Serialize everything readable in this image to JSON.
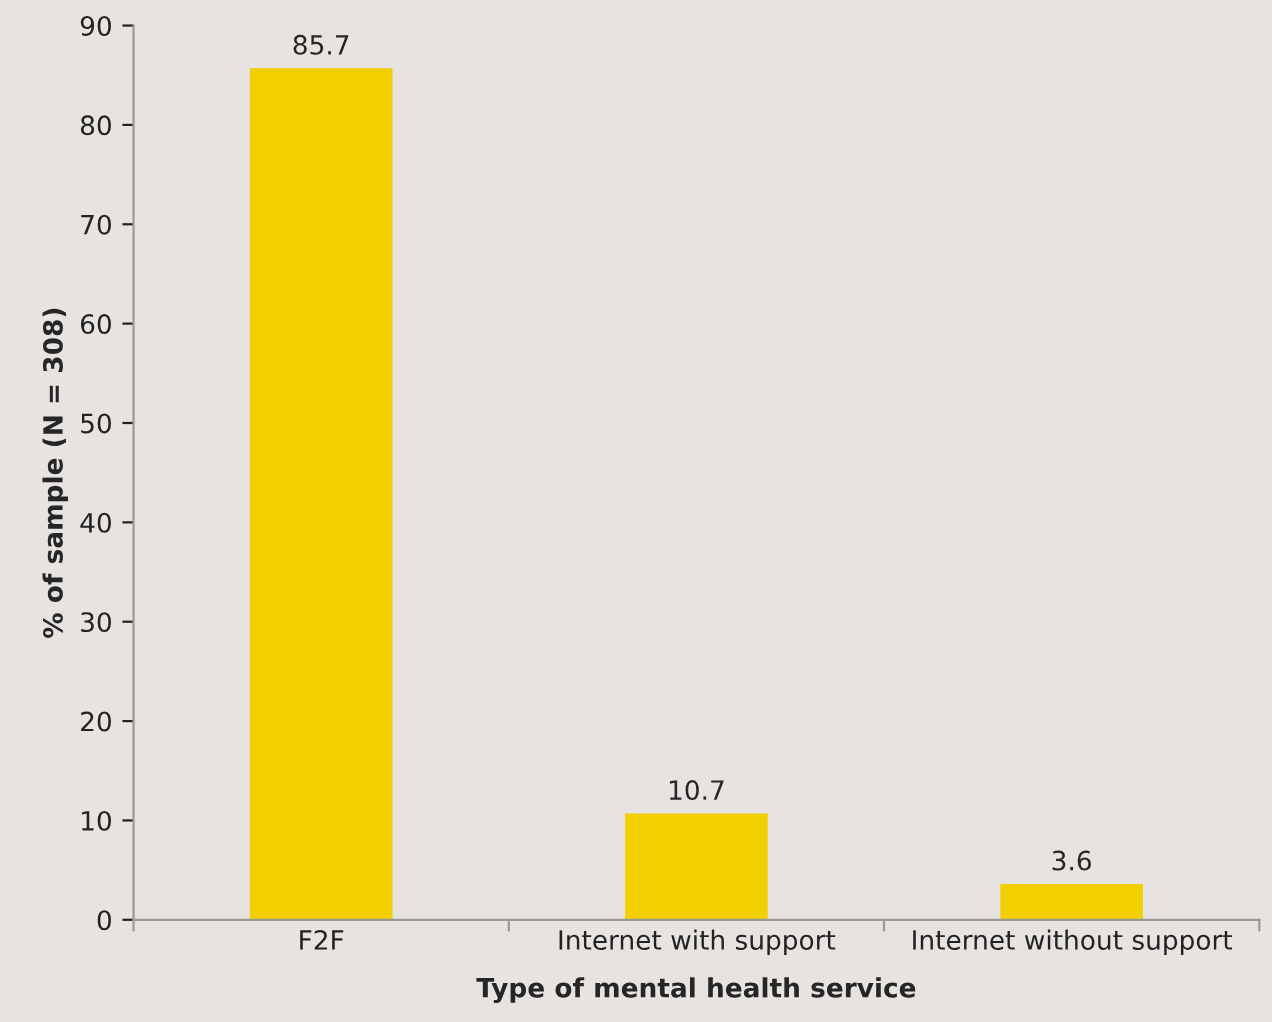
{
  "chart_data": {
    "type": "bar",
    "xlabel": "Type of mental health service",
    "ylabel": "% of sample (N = 308)",
    "categories": [
      "F2F",
      "Internet with support",
      "Internet without support"
    ],
    "values": [
      85.7,
      10.7,
      3.6
    ],
    "color": "#f2cf00",
    "ylim": [
      0,
      90
    ],
    "yticks": [
      0,
      10,
      20,
      30,
      40,
      50,
      60,
      70,
      80,
      90
    ],
    "data_labels": true,
    "grid": false,
    "legend": false
  }
}
